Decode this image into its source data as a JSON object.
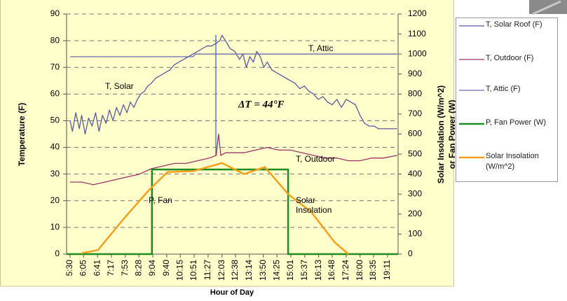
{
  "chart_data": {
    "type": "line",
    "xlabel": "Hour of Day",
    "ylabel": "Temperature (F)",
    "y2label": [
      "Solar Insolation (W/m^2)",
      "or Fan Power (W)"
    ],
    "xlim": [
      5.35,
      19.64
    ],
    "xticks": [
      {
        "value": 5.5,
        "label": "5:30"
      },
      {
        "value": 6.083,
        "label": "6:05"
      },
      {
        "value": 6.683,
        "label": "6:41"
      },
      {
        "value": 7.283,
        "label": "7:17"
      },
      {
        "value": 7.883,
        "label": "7:53"
      },
      {
        "value": 8.467,
        "label": "8:28"
      },
      {
        "value": 9.067,
        "label": "9:04"
      },
      {
        "value": 9.667,
        "label": "9:40"
      },
      {
        "value": 10.25,
        "label": "10:15"
      },
      {
        "value": 10.85,
        "label": "10:51"
      },
      {
        "value": 11.45,
        "label": "11:27"
      },
      {
        "value": 12.05,
        "label": "12:03"
      },
      {
        "value": 12.633,
        "label": "12:38"
      },
      {
        "value": 13.233,
        "label": "13:14"
      },
      {
        "value": 13.833,
        "label": "13:50"
      },
      {
        "value": 14.417,
        "label": "14:25"
      },
      {
        "value": 15.017,
        "label": "15:01"
      },
      {
        "value": 15.617,
        "label": "15:37"
      },
      {
        "value": 16.217,
        "label": "16:13"
      },
      {
        "value": 16.8,
        "label": "16:48"
      },
      {
        "value": 17.4,
        "label": "17:24"
      },
      {
        "value": 18.0,
        "label": "18:00"
      },
      {
        "value": 18.583,
        "label": "18:35"
      },
      {
        "value": 19.183,
        "label": "19:11"
      }
    ],
    "ylim": [
      0,
      90
    ],
    "yticks": [
      0,
      10,
      20,
      30,
      40,
      50,
      60,
      70,
      80,
      90
    ],
    "y2lim": [
      0,
      1200
    ],
    "y2ticks": [
      0,
      100,
      200,
      300,
      400,
      500,
      600,
      700,
      800,
      900,
      1000,
      1100,
      1200
    ],
    "grid": true,
    "series": [
      {
        "name": "T, Solar Roof (F)",
        "color": "#5a5b9f",
        "x": [
          5.5,
          5.6,
          5.75,
          5.9,
          6.0,
          6.15,
          6.3,
          6.45,
          6.6,
          6.75,
          6.9,
          7.05,
          7.2,
          7.35,
          7.5,
          7.65,
          7.8,
          7.95,
          8.1,
          8.25,
          8.4,
          8.55,
          8.7,
          8.85,
          9.0,
          9.2,
          9.4,
          9.6,
          9.8,
          10.0,
          10.2,
          10.4,
          10.6,
          10.8,
          11.0,
          11.2,
          11.4,
          11.6,
          11.8,
          11.95,
          12.05,
          12.2,
          12.4,
          12.6,
          12.8,
          12.95,
          13.1,
          13.25,
          13.4,
          13.55,
          13.7,
          13.85,
          14.0,
          14.2,
          14.4,
          14.6,
          14.8,
          15.0,
          15.2,
          15.4,
          15.6,
          15.8,
          16.0,
          16.2,
          16.4,
          16.6,
          16.8,
          17.0,
          17.2,
          17.4,
          17.6,
          17.8,
          18.0,
          18.2,
          18.4,
          18.6,
          18.8,
          19.0,
          19.2,
          19.4,
          19.6
        ],
        "values": [
          50,
          46,
          53,
          47,
          52,
          45,
          51,
          48,
          53,
          46,
          52,
          49,
          54,
          50,
          55,
          52,
          56,
          53,
          57,
          55,
          58,
          60,
          61,
          63,
          64,
          66,
          67,
          68,
          69,
          71,
          72,
          73,
          74,
          75,
          76,
          77,
          78,
          78,
          79,
          80,
          82,
          80,
          77,
          76,
          73,
          75,
          70,
          74,
          72,
          76,
          74,
          70,
          72,
          69,
          68,
          67,
          66,
          65,
          64,
          62,
          63,
          61,
          60,
          58,
          59,
          57,
          56,
          58,
          55,
          58,
          57,
          56,
          52,
          49,
          48,
          48,
          47,
          47,
          47,
          47,
          47
        ]
      },
      {
        "name": "T, Outdoor (F)",
        "color": "#9b3566",
        "x": [
          5.5,
          6.0,
          6.5,
          7.0,
          7.5,
          8.0,
          8.5,
          9.0,
          9.5,
          10.0,
          10.5,
          11.0,
          11.5,
          11.8,
          11.9,
          12.0,
          12.2,
          12.5,
          13.0,
          13.5,
          14.0,
          14.5,
          15.0,
          15.5,
          16.0,
          16.5,
          17.0,
          17.5,
          18.0,
          18.5,
          19.0,
          19.6
        ],
        "values": [
          27,
          27,
          26,
          27,
          28,
          29,
          30,
          32,
          33,
          34,
          34,
          35,
          36,
          37,
          45,
          37,
          38,
          38,
          38,
          39,
          40,
          39,
          39,
          38,
          37,
          36,
          36,
          35,
          35,
          36,
          36,
          37
        ]
      },
      {
        "name": "T, Attic (F)",
        "color": "#6b6bb0",
        "x": [
          5.5,
          10.8,
          10.9,
          19.6
        ],
        "values": [
          74,
          74,
          75,
          75
        ]
      },
      {
        "name": "P, Fan Power (W)",
        "color": "#1e8c1e",
        "axis": "y2",
        "x": [
          5.35,
          9.03,
          9.03,
          14.9,
          14.9,
          19.64
        ],
        "values": [
          0,
          0,
          423,
          423,
          0,
          0
        ]
      },
      {
        "name": "Solar Insolation (W/m^2)",
        "color": "#f5a01a",
        "axis": "y2",
        "x": [
          6.0,
          6.7,
          7.8,
          8.9,
          9.7,
          10.8,
          12.05,
          13.0,
          13.9,
          14.9,
          15.9,
          16.9,
          17.5
        ],
        "values": [
          5,
          20,
          175,
          320,
          410,
          415,
          455,
          400,
          435,
          300,
          210,
          60,
          0
        ]
      }
    ],
    "annotations": [
      "T, Solar",
      "T, Attic",
      "ΔT = 44°F",
      "T, Outdoor",
      "P, Fan",
      "Solar Insolation"
    ]
  }
}
